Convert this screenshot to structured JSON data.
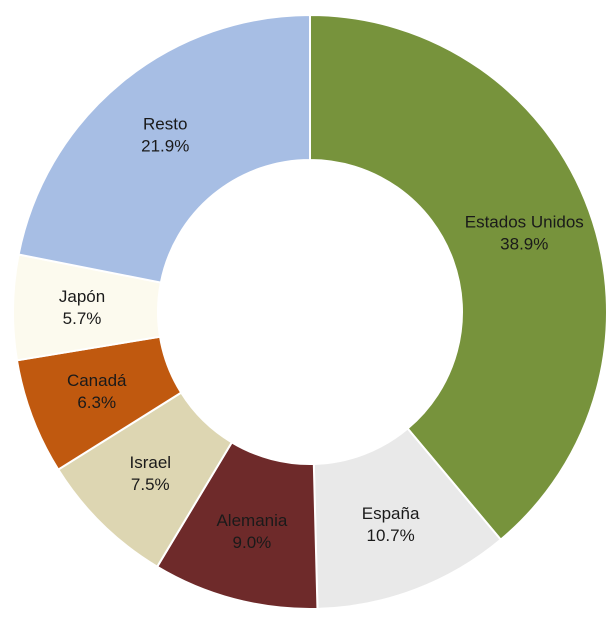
{
  "chart_data": {
    "type": "donut",
    "categories": [
      "Estados Unidos",
      "España",
      "Alemania",
      "Israel",
      "Canadá",
      "Japón",
      "Resto"
    ],
    "values": [
      38.9,
      10.7,
      9.0,
      7.5,
      6.3,
      5.7,
      21.9
    ],
    "value_labels": [
      "38.9%",
      "10.7%",
      "9.0%",
      "7.5%",
      "6.3%",
      "5.7%",
      "21.9%"
    ],
    "colors": [
      "#77933c",
      "#e9e9e9",
      "#6e2a2a",
      "#ddd6b2",
      "#c0590f",
      "#fcfaee",
      "#a7bee4"
    ]
  }
}
